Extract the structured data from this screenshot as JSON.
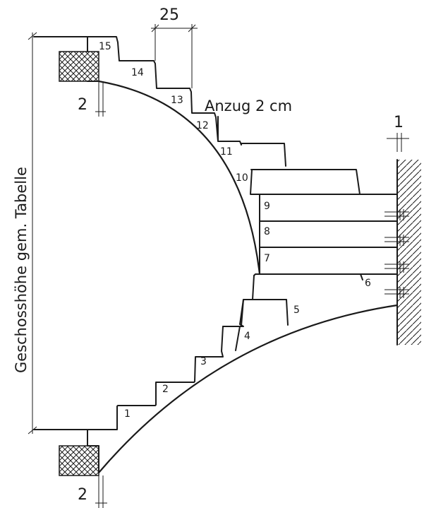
{
  "labels": {
    "dim_tread": "25",
    "dim_top_gap": "2",
    "dim_bottom_gap": "2",
    "dim_wall_gap": "1",
    "anzug": "Anzug 2 cm",
    "geschosshoehe": "Geschosshöhe gem. Tabelle"
  },
  "steps": [
    "1",
    "2",
    "3",
    "4",
    "5",
    "6",
    "7",
    "8",
    "9",
    "10",
    "11",
    "12",
    "13",
    "14",
    "15"
  ]
}
